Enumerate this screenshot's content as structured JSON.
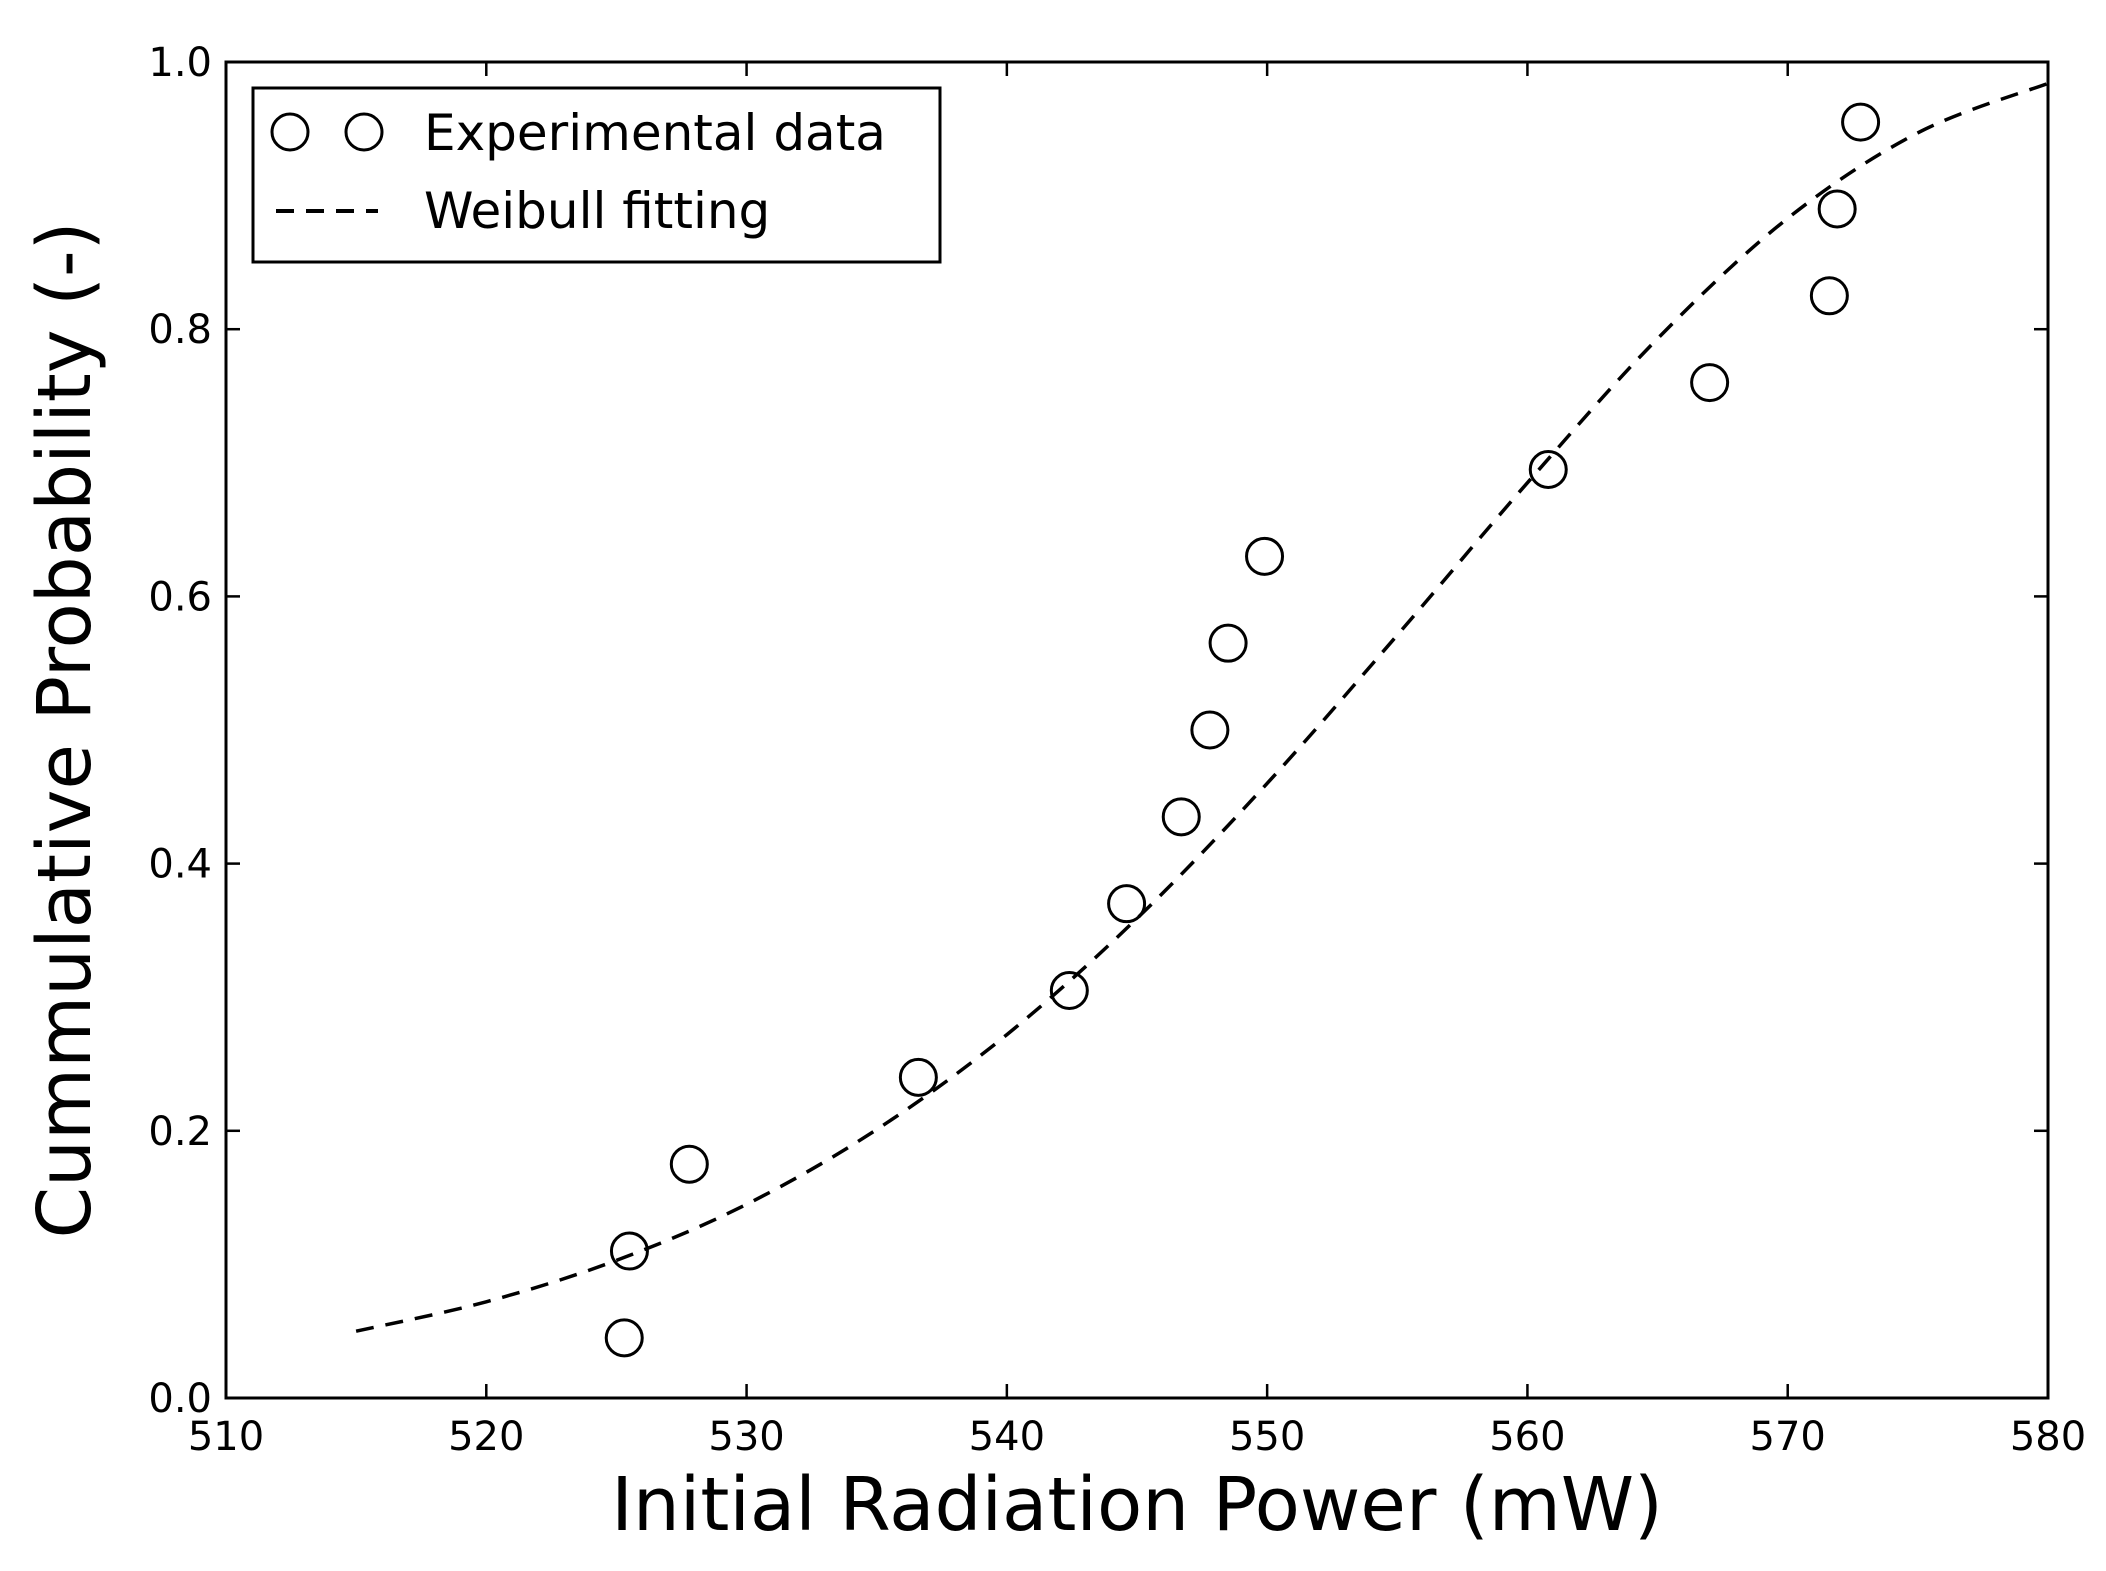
{
  "chart_data": {
    "type": "scatter",
    "title": "",
    "xlabel": "Initial Radiation Power (mW)",
    "ylabel": "Cummulative Probability (-)",
    "xlim": [
      510,
      580
    ],
    "ylim": [
      0.0,
      1.0
    ],
    "xticks": [
      510,
      520,
      530,
      540,
      550,
      560,
      570,
      580
    ],
    "yticks": [
      0.0,
      0.2,
      0.4,
      0.6,
      0.8,
      1.0
    ],
    "xtick_labels": [
      "510",
      "520",
      "530",
      "540",
      "550",
      "560",
      "570",
      "580"
    ],
    "ytick_labels": [
      "0.0",
      "0.2",
      "0.4",
      "0.6",
      "0.8",
      "1.0"
    ],
    "grid": false,
    "legend_position": "top-left",
    "series": [
      {
        "name": "Experimental data",
        "marker": "open-circle",
        "color": "#000000",
        "x": [
          525.3,
          525.5,
          527.8,
          536.6,
          542.4,
          544.6,
          546.7,
          547.8,
          548.5,
          549.9,
          560.8,
          567.0,
          571.6,
          571.9,
          572.8
        ],
        "y": [
          0.045,
          0.11,
          0.175,
          0.24,
          0.305,
          0.37,
          0.435,
          0.5,
          0.565,
          0.63,
          0.695,
          0.76,
          0.825,
          0.89,
          0.955
        ]
      },
      {
        "name": "Weibull fitting",
        "line_style": "dashed",
        "color": "#000000",
        "model": "weibull-cdf",
        "x_start": 515,
        "x_end": 580,
        "points": [
          {
            "x": 515,
            "y": 0.05
          },
          {
            "x": 520,
            "y": 0.072
          },
          {
            "x": 525,
            "y": 0.103
          },
          {
            "x": 530,
            "y": 0.145
          },
          {
            "x": 535,
            "y": 0.201
          },
          {
            "x": 540,
            "y": 0.272
          },
          {
            "x": 545,
            "y": 0.359
          },
          {
            "x": 550,
            "y": 0.46
          },
          {
            "x": 555,
            "y": 0.571
          },
          {
            "x": 560,
            "y": 0.685
          },
          {
            "x": 565,
            "y": 0.793
          },
          {
            "x": 570,
            "y": 0.883
          },
          {
            "x": 575,
            "y": 0.947
          },
          {
            "x": 580,
            "y": 0.984
          }
        ]
      }
    ]
  }
}
